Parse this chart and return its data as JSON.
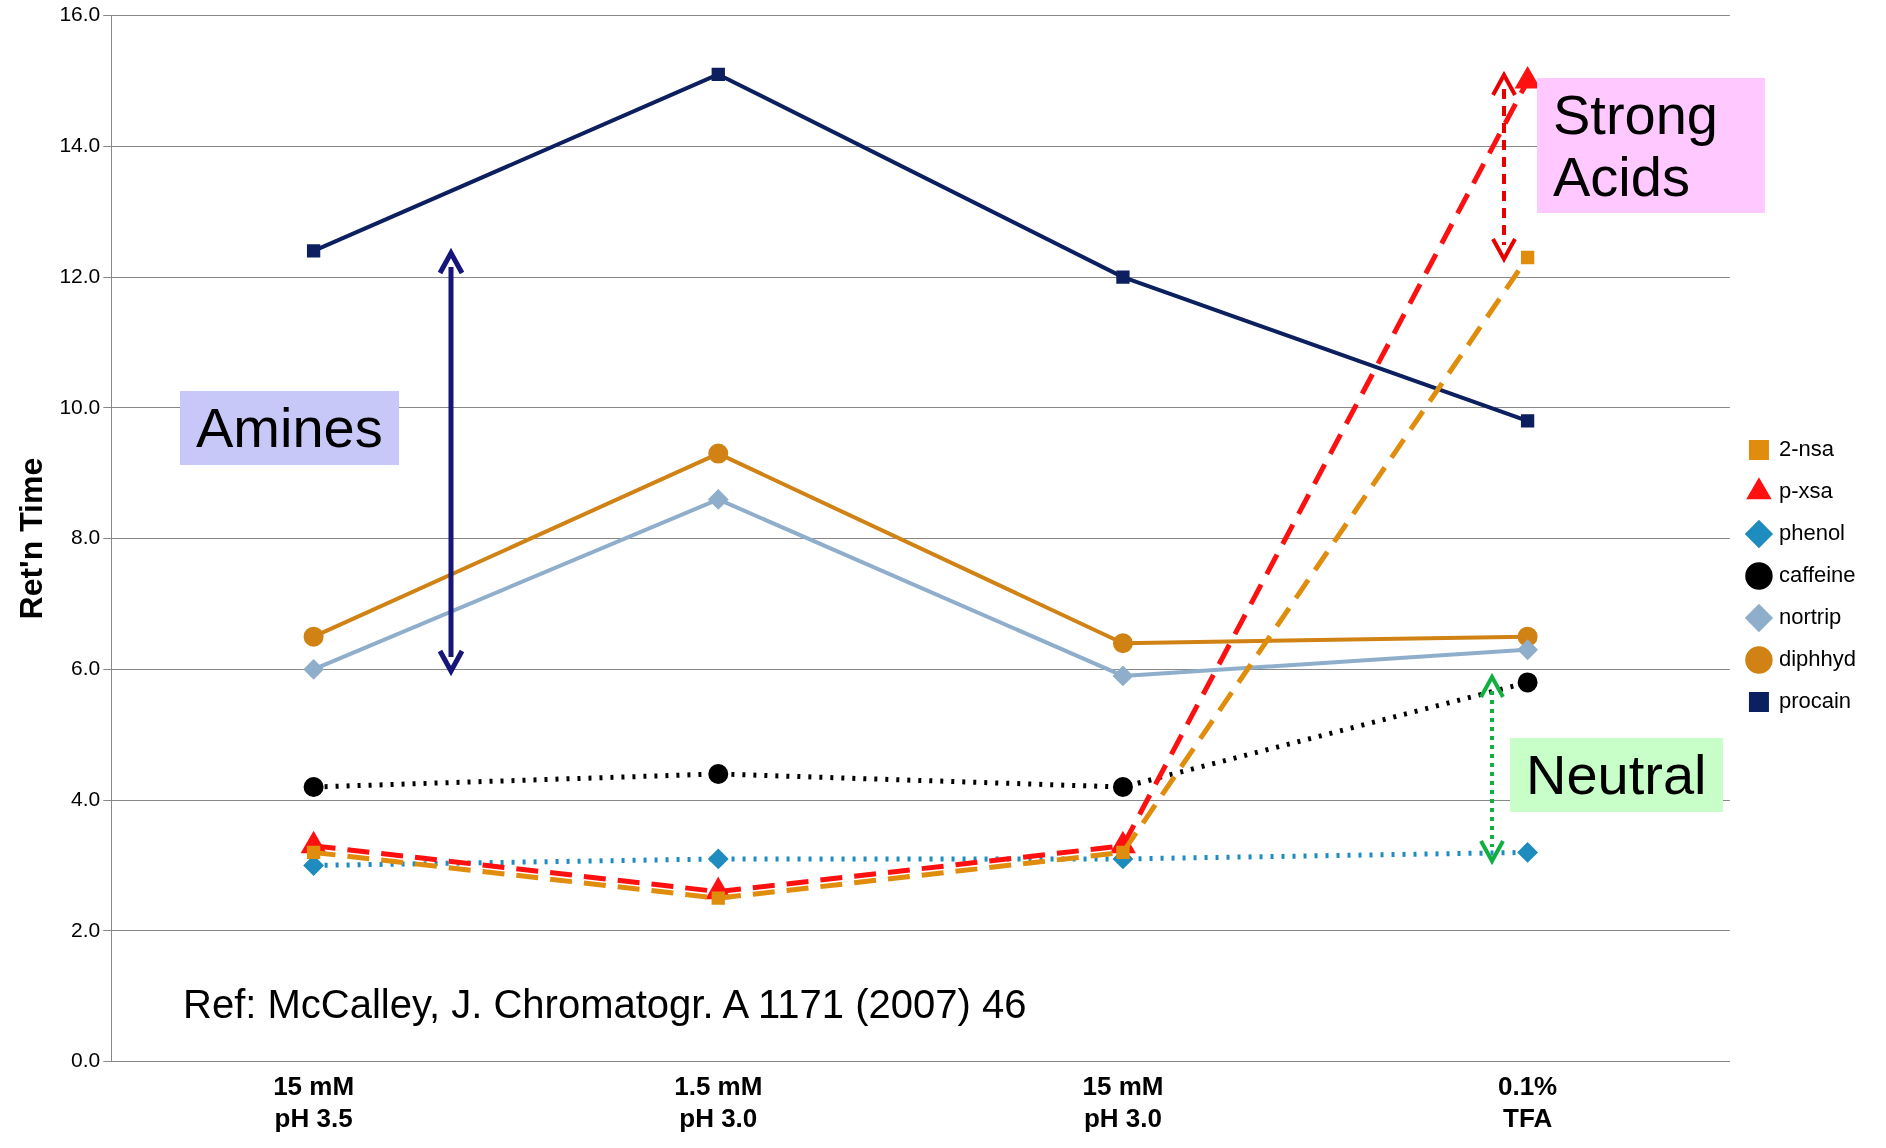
{
  "chart_data": {
    "type": "line",
    "ylabel": "Ret'n Time",
    "categories": [
      "15 mM\npH 3.5",
      "1.5 mM\npH 3.0",
      "15 mM\npH 3.0",
      "0.1%\nTFA"
    ],
    "series": [
      {
        "name": "2-nsa",
        "color": "#e08c0c",
        "values": [
          3.2,
          2.5,
          3.2,
          12.3
        ],
        "marker": "square",
        "line_style": "dashed"
      },
      {
        "name": "p-xsa",
        "color": "#ff1010",
        "values": [
          3.3,
          2.6,
          3.3,
          15.0
        ],
        "marker": "triangle",
        "line_style": "dashed"
      },
      {
        "name": "phenol",
        "color": "#1e8cbe",
        "values": [
          3.0,
          3.1,
          3.1,
          3.2
        ],
        "marker": "diamond",
        "line_style": "dotted"
      },
      {
        "name": "caffeine",
        "color": "#000000",
        "values": [
          4.2,
          4.4,
          4.2,
          5.8
        ],
        "marker": "circle",
        "line_style": "dotted"
      },
      {
        "name": "nortrip",
        "color": "#8eaecb",
        "values": [
          6.0,
          8.6,
          5.9,
          6.3
        ],
        "marker": "diamond",
        "line_style": "solid"
      },
      {
        "name": "diphhyd",
        "color": "#d08214",
        "values": [
          6.5,
          9.3,
          6.4,
          6.5
        ],
        "marker": "circle",
        "line_style": "solid"
      },
      {
        "name": "procain",
        "color": "#0c1f5e",
        "values": [
          12.4,
          15.1,
          12.0,
          9.8
        ],
        "marker": "square",
        "line_style": "solid"
      }
    ],
    "ylim": [
      0,
      16
    ],
    "yticks": [
      {
        "value": 0,
        "label": "0.0"
      },
      {
        "value": 2,
        "label": "2.0"
      },
      {
        "value": 4,
        "label": "4.0"
      },
      {
        "value": 6,
        "label": "6.0"
      },
      {
        "value": 8,
        "label": "8.0"
      },
      {
        "value": 10,
        "label": "10.0"
      },
      {
        "value": 12,
        "label": "12.0"
      },
      {
        "value": 14,
        "label": "14.0"
      },
      {
        "value": 16,
        "label": "16.0"
      }
    ],
    "grid": "y",
    "legend": "right",
    "annotations": [
      "Amines",
      "Strong Acids",
      "Neutral",
      "Ref: McCalley, J. Chromatogr. A 1171 (2007) 46"
    ]
  }
}
